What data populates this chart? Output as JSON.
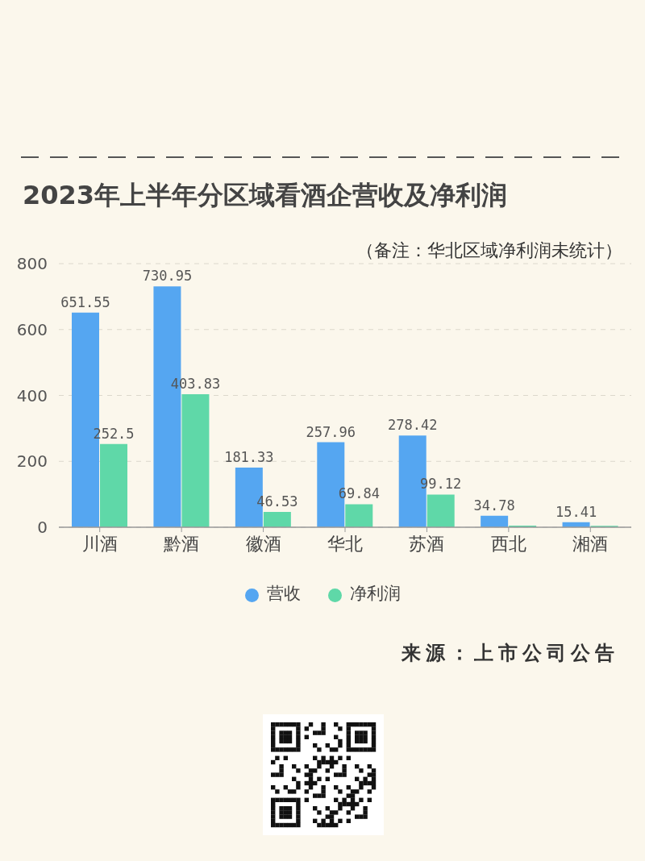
{
  "chart_data": {
    "type": "bar",
    "title": "2023年上半年分区域看酒企营收及净利润",
    "annotations": [
      "（备注：华北区域净利润未统计）",
      "来源：上市公司公告"
    ],
    "categories": [
      "川酒",
      "黔酒",
      "徽酒",
      "华北",
      "苏酒",
      "西北",
      "湘酒"
    ],
    "series": [
      {
        "name": "营收",
        "color": "#55a6f1",
        "values": [
          651.55,
          730.95,
          181.33,
          257.96,
          278.42,
          34.78,
          15.41
        ],
        "value_labels": [
          "651.55",
          "730.95",
          "181.33",
          "257.96",
          "278.42",
          "34.78",
          "15.41"
        ]
      },
      {
        "name": "净利润",
        "color": "#5fd8a8",
        "values": [
          252.5,
          403.83,
          46.53,
          69.84,
          99.12,
          5,
          4
        ],
        "value_labels": [
          "252.5",
          "403.83",
          "46.53",
          "69.84",
          "99.12",
          null,
          null
        ]
      }
    ],
    "ylim": [
      0,
      800
    ],
    "yticks": [
      0,
      200,
      400,
      600,
      800
    ],
    "grid": "y",
    "legend": "bottom"
  }
}
